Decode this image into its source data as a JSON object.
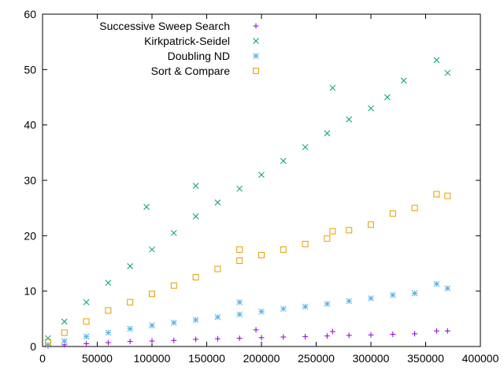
{
  "chart_data": {
    "type": "scatter",
    "title": "",
    "xlabel": "",
    "ylabel": "",
    "xlim": [
      0,
      400000
    ],
    "ylim": [
      0,
      60
    ],
    "xticks": [
      0,
      50000,
      100000,
      150000,
      200000,
      250000,
      300000,
      350000,
      400000
    ],
    "yticks": [
      0,
      10,
      20,
      30,
      40,
      50,
      60
    ],
    "xtick_labels": [
      "0",
      "50000",
      "100000",
      "150000",
      "200000",
      "250000",
      "300000",
      "350000",
      "400000"
    ],
    "ytick_labels": [
      "0",
      "10",
      "20",
      "30",
      "40",
      "50",
      "60"
    ],
    "grid": false,
    "legend_position": "top-left",
    "series": [
      {
        "name": "Successive Sweep Search",
        "marker": "plus",
        "color": "#9400d3",
        "points": [
          [
            5000,
            0.1
          ],
          [
            20000,
            0.3
          ],
          [
            40000,
            0.5
          ],
          [
            60000,
            0.7
          ],
          [
            80000,
            0.9
          ],
          [
            100000,
            1.0
          ],
          [
            120000,
            1.1
          ],
          [
            140000,
            1.3
          ],
          [
            160000,
            1.4
          ],
          [
            180000,
            1.5
          ],
          [
            200000,
            1.6
          ],
          [
            220000,
            1.7
          ],
          [
            240000,
            1.8
          ],
          [
            260000,
            1.9
          ],
          [
            280000,
            2.0
          ],
          [
            300000,
            2.1
          ],
          [
            320000,
            2.2
          ],
          [
            340000,
            2.3
          ],
          [
            360000,
            2.8
          ],
          [
            370000,
            2.8
          ],
          [
            195000,
            3.0
          ],
          [
            265000,
            2.7
          ]
        ]
      },
      {
        "name": "Kirkpatrick-Seidel",
        "marker": "cross",
        "color": "#009e73",
        "points": [
          [
            5000,
            1.5
          ],
          [
            20000,
            4.5
          ],
          [
            40000,
            8.0
          ],
          [
            60000,
            11.5
          ],
          [
            80000,
            14.5
          ],
          [
            100000,
            17.5
          ],
          [
            120000,
            20.5
          ],
          [
            140000,
            23.5
          ],
          [
            160000,
            26.0
          ],
          [
            180000,
            28.5
          ],
          [
            200000,
            31.0
          ],
          [
            220000,
            33.5
          ],
          [
            240000,
            36.0
          ],
          [
            260000,
            38.5
          ],
          [
            280000,
            41.0
          ],
          [
            300000,
            43.0
          ],
          [
            315000,
            45.0
          ],
          [
            330000,
            48.0
          ],
          [
            360000,
            51.7
          ],
          [
            370000,
            49.4
          ],
          [
            265000,
            46.7
          ],
          [
            95000,
            25.2
          ],
          [
            140000,
            29.0
          ]
        ]
      },
      {
        "name": "Doubling ND",
        "marker": "star",
        "color": "#56b4e9",
        "points": [
          [
            5000,
            0.3
          ],
          [
            20000,
            1.0
          ],
          [
            40000,
            1.8
          ],
          [
            60000,
            2.5
          ],
          [
            80000,
            3.2
          ],
          [
            100000,
            3.8
          ],
          [
            120000,
            4.3
          ],
          [
            140000,
            4.8
          ],
          [
            160000,
            5.3
          ],
          [
            180000,
            5.8
          ],
          [
            200000,
            6.3
          ],
          [
            220000,
            6.8
          ],
          [
            240000,
            7.2
          ],
          [
            260000,
            7.7
          ],
          [
            280000,
            8.2
          ],
          [
            300000,
            8.7
          ],
          [
            320000,
            9.3
          ],
          [
            340000,
            9.6
          ],
          [
            360000,
            11.3
          ],
          [
            370000,
            10.5
          ],
          [
            180000,
            8.0
          ]
        ]
      },
      {
        "name": "Sort & Compare",
        "marker": "square",
        "color": "#e69f00",
        "points": [
          [
            5000,
            0.8
          ],
          [
            20000,
            2.5
          ],
          [
            40000,
            4.5
          ],
          [
            60000,
            6.5
          ],
          [
            80000,
            8.0
          ],
          [
            100000,
            9.5
          ],
          [
            120000,
            11.0
          ],
          [
            140000,
            12.5
          ],
          [
            160000,
            14.0
          ],
          [
            180000,
            15.5
          ],
          [
            200000,
            16.5
          ],
          [
            220000,
            17.5
          ],
          [
            240000,
            18.5
          ],
          [
            260000,
            19.5
          ],
          [
            280000,
            21.0
          ],
          [
            300000,
            22.0
          ],
          [
            320000,
            24.0
          ],
          [
            340000,
            25.0
          ],
          [
            360000,
            27.5
          ],
          [
            370000,
            27.2
          ],
          [
            265000,
            20.8
          ],
          [
            180000,
            17.5
          ]
        ]
      }
    ]
  }
}
